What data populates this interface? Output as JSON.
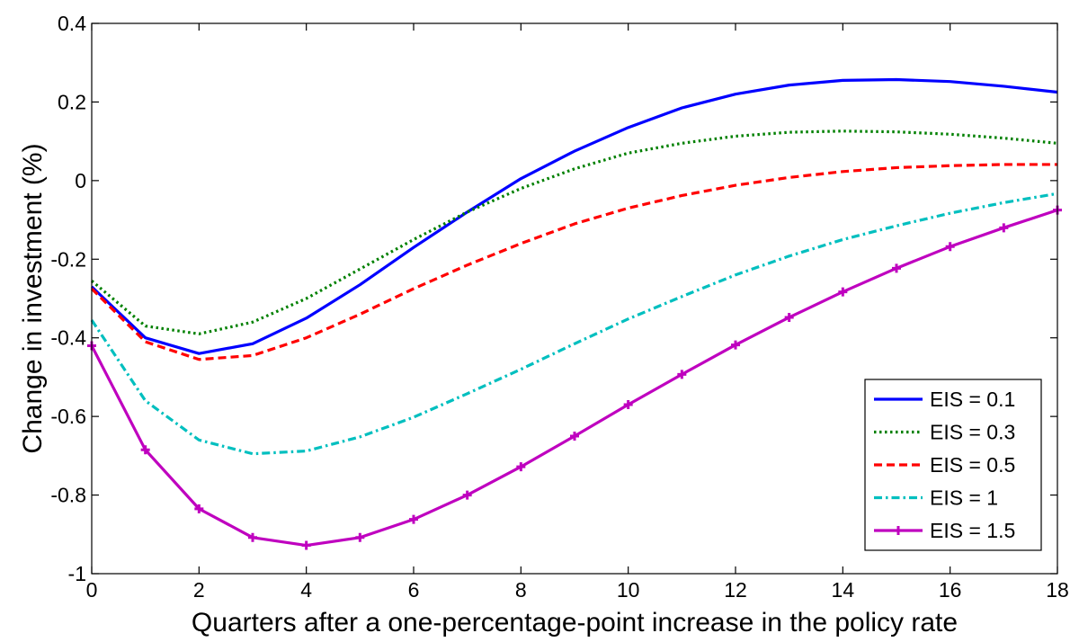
{
  "chart_data": {
    "type": "line",
    "xlabel": "Quarters after a one-percentage-point increase in the policy rate",
    "ylabel": "Change in investment (%)",
    "xlim": [
      0,
      18
    ],
    "ylim": [
      -1,
      0.4
    ],
    "xticks": [
      0,
      2,
      4,
      6,
      8,
      10,
      12,
      14,
      16,
      18
    ],
    "yticks": [
      -1,
      -0.8,
      -0.6,
      -0.4,
      -0.2,
      0,
      0.2,
      0.4
    ],
    "xtick_labels": [
      "0",
      "2",
      "4",
      "6",
      "8",
      "10",
      "12",
      "14",
      "16",
      "18"
    ],
    "ytick_labels": [
      "-1",
      "-0.8",
      "-0.6",
      "-0.4",
      "-0.2",
      "0",
      "0.2",
      "0.4"
    ],
    "grid": false,
    "legend_position": "bottom-right",
    "x": [
      0,
      1,
      2,
      3,
      4,
      5,
      6,
      7,
      8,
      9,
      10,
      11,
      12,
      13,
      14,
      15,
      16,
      17,
      18
    ],
    "series": [
      {
        "name": "EIS = 0.1",
        "color": "#0000ff",
        "style": "solid",
        "marker": "none",
        "values": [
          -0.27,
          -0.4,
          -0.44,
          -0.415,
          -0.35,
          -0.265,
          -0.17,
          -0.08,
          0.005,
          0.075,
          0.135,
          0.185,
          0.22,
          0.243,
          0.255,
          0.257,
          0.252,
          0.24,
          0.225
        ]
      },
      {
        "name": "EIS = 0.3",
        "color": "#008000",
        "style": "dotted",
        "marker": "none",
        "values": [
          -0.255,
          -0.37,
          -0.39,
          -0.36,
          -0.3,
          -0.225,
          -0.15,
          -0.08,
          -0.02,
          0.03,
          0.07,
          0.095,
          0.113,
          0.123,
          0.126,
          0.124,
          0.118,
          0.108,
          0.095
        ]
      },
      {
        "name": "EIS = 0.5",
        "color": "#ff0000",
        "style": "dashed",
        "marker": "none",
        "values": [
          -0.275,
          -0.41,
          -0.455,
          -0.445,
          -0.4,
          -0.34,
          -0.275,
          -0.215,
          -0.16,
          -0.11,
          -0.07,
          -0.038,
          -0.012,
          0.008,
          0.023,
          0.033,
          0.038,
          0.041,
          0.041
        ]
      },
      {
        "name": "EIS = 1",
        "color": "#00bfbf",
        "style": "dashdot",
        "marker": "none",
        "values": [
          -0.355,
          -0.56,
          -0.66,
          -0.695,
          -0.688,
          -0.652,
          -0.602,
          -0.542,
          -0.48,
          -0.415,
          -0.352,
          -0.295,
          -0.24,
          -0.192,
          -0.15,
          -0.115,
          -0.083,
          -0.056,
          -0.033
        ]
      },
      {
        "name": "EIS = 1.5",
        "color": "#bf00bf",
        "style": "solid",
        "marker": "plus",
        "values": [
          -0.42,
          -0.685,
          -0.835,
          -0.908,
          -0.928,
          -0.908,
          -0.862,
          -0.8,
          -0.728,
          -0.65,
          -0.57,
          -0.493,
          -0.418,
          -0.348,
          -0.283,
          -0.223,
          -0.168,
          -0.12,
          -0.075
        ]
      }
    ]
  }
}
